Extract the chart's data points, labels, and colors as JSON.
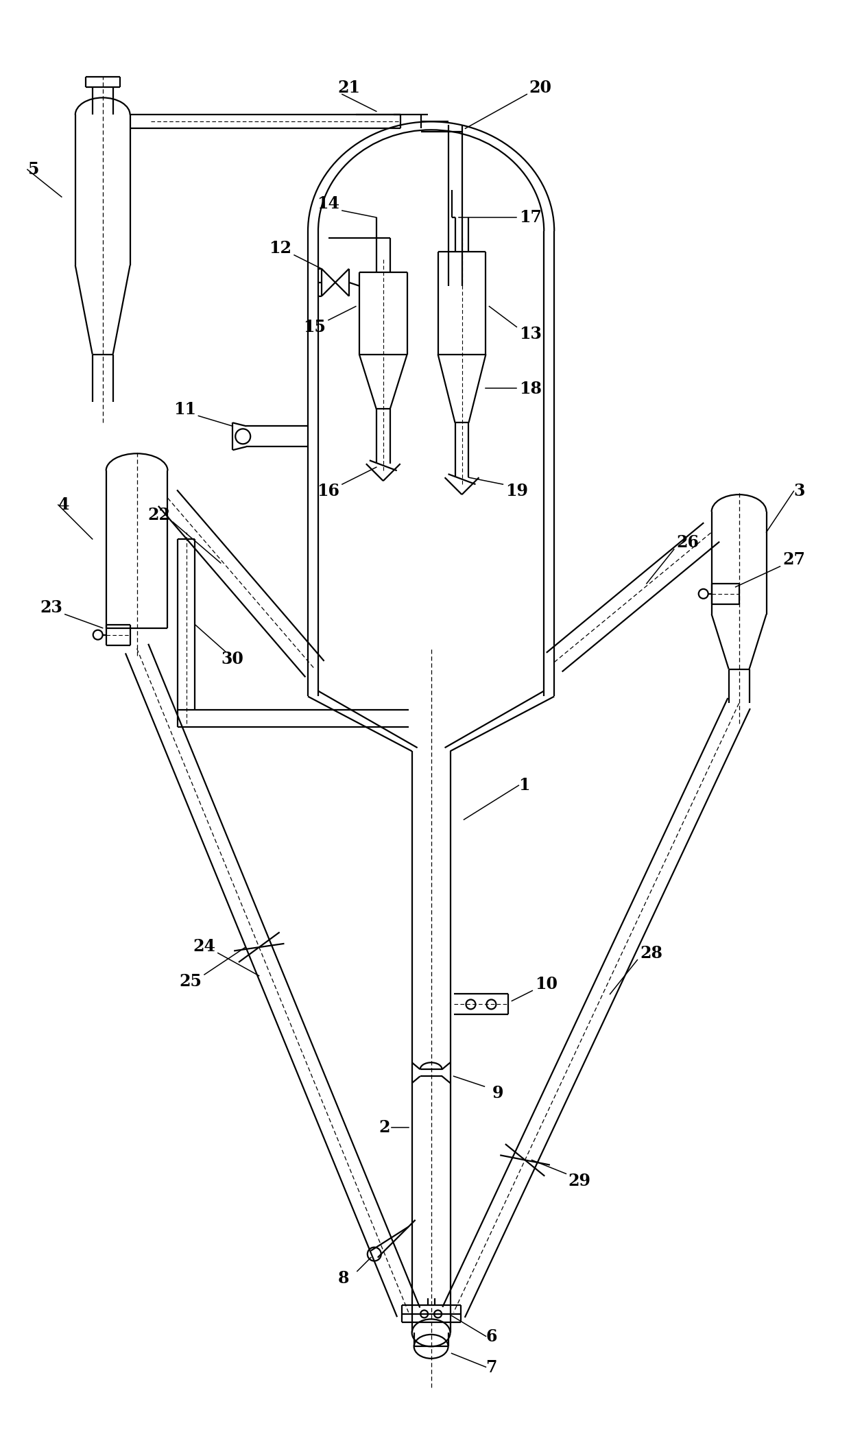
{
  "bg_color": "#ffffff",
  "lw": 1.6,
  "lw_thin": 1.0,
  "fs": 17,
  "xlim": [
    0,
    124
  ],
  "ylim": [
    0,
    210.8
  ]
}
